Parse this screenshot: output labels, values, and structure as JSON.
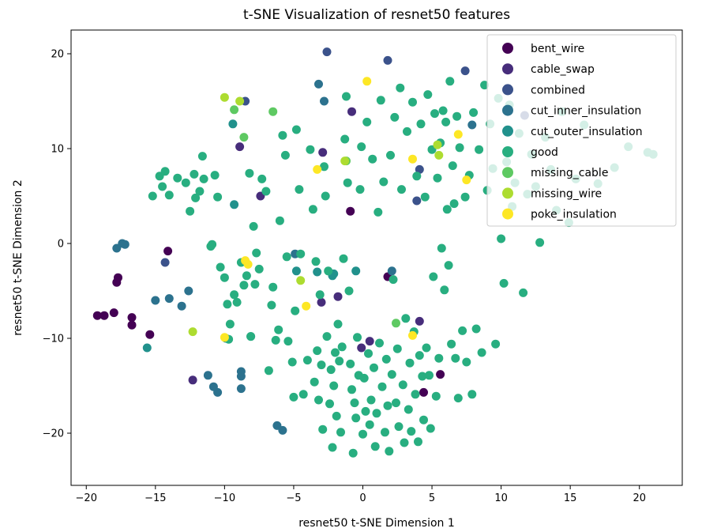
{
  "chart_data": {
    "type": "scatter",
    "title": "t-SNE Visualization of resnet50 features",
    "xlabel": "resnet50 t-SNE Dimension 1",
    "ylabel": "resnet50 t-SNE Dimension 2",
    "xlim": [
      -21.1,
      23.1
    ],
    "ylim": [
      -25.5,
      22.5
    ],
    "xticks": [
      -20,
      -15,
      -10,
      -5,
      0,
      5,
      10,
      15,
      20
    ],
    "yticks": [
      -20,
      -10,
      0,
      10,
      20
    ],
    "xtick_labels": [
      "−20",
      "−15",
      "−10",
      "−5",
      "0",
      "5",
      "10",
      "15",
      "20"
    ],
    "ytick_labels": [
      "−20",
      "−10",
      "0",
      "10",
      "20"
    ],
    "grid": false,
    "legend_position": "top-right",
    "series": [
      {
        "name": "bent_wire",
        "color": "#440154",
        "points": [
          [
            -19.2,
            -7.6
          ],
          [
            -18.7,
            -7.6
          ],
          [
            -18.0,
            -7.3
          ],
          [
            -17.8,
            -4.1
          ],
          [
            -17.7,
            -3.6
          ],
          [
            -16.7,
            -7.8
          ],
          [
            -16.7,
            -8.6
          ],
          [
            -15.4,
            -9.6
          ],
          [
            -14.1,
            -0.8
          ],
          [
            -0.9,
            3.4
          ],
          [
            1.8,
            -3.5
          ],
          [
            4.4,
            -15.7
          ],
          [
            5.6,
            -13.8
          ]
        ]
      },
      {
        "name": "cable_swap",
        "color": "#472d7b",
        "points": [
          [
            -12.3,
            -14.4
          ],
          [
            -8.9,
            10.2
          ],
          [
            -7.4,
            5.0
          ],
          [
            -3.0,
            -6.2
          ],
          [
            -2.9,
            9.6
          ],
          [
            -1.8,
            -5.6
          ],
          [
            -0.8,
            13.9
          ],
          [
            -0.1,
            -11.0
          ],
          [
            0.5,
            -10.3
          ],
          [
            4.1,
            -8.2
          ]
        ]
      },
      {
        "name": "combined",
        "color": "#3b528b",
        "points": [
          [
            -14.3,
            -2.0
          ],
          [
            -8.5,
            15.0
          ],
          [
            -2.6,
            20.2
          ],
          [
            1.8,
            19.3
          ],
          [
            3.9,
            4.5
          ],
          [
            4.1,
            7.8
          ],
          [
            7.4,
            18.2
          ],
          [
            11.7,
            13.5
          ]
        ]
      },
      {
        "name": "cut_inner_insulation",
        "color": "#2c728e",
        "points": [
          [
            -17.4,
            0.0
          ],
          [
            -17.2,
            -0.1
          ],
          [
            -17.8,
            -0.5
          ],
          [
            -15.0,
            -6.0
          ],
          [
            -14.0,
            -5.8
          ],
          [
            -13.1,
            -6.6
          ],
          [
            -12.6,
            -5.0
          ],
          [
            -11.2,
            -13.9
          ],
          [
            -10.8,
            -15.1
          ],
          [
            -10.5,
            -15.7
          ],
          [
            -8.8,
            -14.0
          ],
          [
            -8.8,
            -15.3
          ],
          [
            -8.8,
            -13.5
          ],
          [
            -6.2,
            -19.2
          ],
          [
            -5.8,
            -19.7
          ],
          [
            -4.9,
            -1.1
          ],
          [
            -3.2,
            16.8
          ],
          [
            -2.8,
            15.0
          ],
          [
            2.1,
            -2.9
          ],
          [
            7.9,
            12.5
          ]
        ]
      },
      {
        "name": "cut_outer_insulation",
        "color": "#21918c",
        "points": [
          [
            -15.6,
            -11.0
          ],
          [
            -9.9,
            -10.0
          ],
          [
            -9.3,
            4.1
          ],
          [
            -9.4,
            12.6
          ],
          [
            -8.1,
            -9.8
          ],
          [
            -4.8,
            -2.9
          ],
          [
            -3.3,
            -3.0
          ],
          [
            -2.2,
            -3.4
          ],
          [
            -2.1,
            -3.2
          ],
          [
            -0.5,
            -2.9
          ]
        ]
      },
      {
        "name": "good",
        "color": "#28ae80",
        "points": [
          [
            -15.2,
            5.0
          ],
          [
            -14.7,
            7.1
          ],
          [
            -14.5,
            6.0
          ],
          [
            -14.3,
            7.6
          ],
          [
            -14.0,
            5.1
          ],
          [
            -13.4,
            6.9
          ],
          [
            -12.8,
            6.4
          ],
          [
            -12.5,
            3.4
          ],
          [
            -12.2,
            7.3
          ],
          [
            -12.1,
            4.8
          ],
          [
            -11.8,
            5.5
          ],
          [
            -11.6,
            9.2
          ],
          [
            -11.5,
            6.8
          ],
          [
            -11.0,
            -0.3
          ],
          [
            -10.9,
            -0.1
          ],
          [
            -10.7,
            7.2
          ],
          [
            -10.5,
            4.9
          ],
          [
            -10.3,
            -2.5
          ],
          [
            -10.0,
            -3.6
          ],
          [
            -9.8,
            -6.4
          ],
          [
            -9.6,
            -8.5
          ],
          [
            -9.3,
            -5.4
          ],
          [
            -9.1,
            -6.2
          ],
          [
            -8.8,
            -2.0
          ],
          [
            -8.6,
            -4.4
          ],
          [
            -8.4,
            -3.4
          ],
          [
            -8.2,
            7.4
          ],
          [
            -8.1,
            -9.8
          ],
          [
            -7.9,
            1.8
          ],
          [
            -7.7,
            -1.0
          ],
          [
            -7.5,
            -2.7
          ],
          [
            -7.3,
            6.8
          ],
          [
            -7.0,
            5.5
          ],
          [
            -6.8,
            -13.4
          ],
          [
            -6.6,
            -6.5
          ],
          [
            -6.5,
            -4.6
          ],
          [
            -6.3,
            -10.2
          ],
          [
            -6.1,
            -9.1
          ],
          [
            -6.0,
            2.4
          ],
          [
            -5.8,
            11.4
          ],
          [
            -5.6,
            9.3
          ],
          [
            -5.5,
            -1.4
          ],
          [
            -5.4,
            -10.3
          ],
          [
            -5.1,
            -12.5
          ],
          [
            -5.0,
            -16.2
          ],
          [
            -4.9,
            -7.1
          ],
          [
            -4.8,
            12.0
          ],
          [
            -4.6,
            5.7
          ],
          [
            -4.5,
            -1.1
          ],
          [
            -4.3,
            -15.9
          ],
          [
            -4.0,
            -12.3
          ],
          [
            -3.8,
            9.9
          ],
          [
            -3.6,
            3.6
          ],
          [
            -3.5,
            -14.6
          ],
          [
            -3.4,
            -1.9
          ],
          [
            -3.3,
            -11.3
          ],
          [
            -3.2,
            -16.5
          ],
          [
            -3.0,
            -12.8
          ],
          [
            -2.9,
            -19.6
          ],
          [
            -2.8,
            8.1
          ],
          [
            -2.7,
            5.0
          ],
          [
            -2.6,
            -9.8
          ],
          [
            -2.5,
            -2.9
          ],
          [
            -2.4,
            -16.9
          ],
          [
            -2.3,
            -13.3
          ],
          [
            -2.2,
            -21.5
          ],
          [
            -2.1,
            -15.0
          ],
          [
            -2.0,
            -11.5
          ],
          [
            -1.9,
            -18.2
          ],
          [
            -1.8,
            -8.5
          ],
          [
            -1.7,
            -12.4
          ],
          [
            -1.6,
            -19.9
          ],
          [
            -1.5,
            -10.9
          ],
          [
            -1.4,
            -1.6
          ],
          [
            -1.3,
            11.0
          ],
          [
            -1.2,
            15.5
          ],
          [
            -1.1,
            6.4
          ],
          [
            -1.0,
            -5.0
          ],
          [
            -0.9,
            -12.7
          ],
          [
            -0.8,
            -15.4
          ],
          [
            -0.7,
            -22.1
          ],
          [
            -0.6,
            -16.8
          ],
          [
            -0.5,
            -18.4
          ],
          [
            -0.4,
            -9.9
          ],
          [
            -0.3,
            -13.9
          ],
          [
            -0.2,
            5.7
          ],
          [
            -0.1,
            10.2
          ],
          [
            0.0,
            -20.1
          ],
          [
            0.1,
            -14.2
          ],
          [
            0.2,
            -17.7
          ],
          [
            0.3,
            12.8
          ],
          [
            0.4,
            -11.6
          ],
          [
            0.5,
            -19.1
          ],
          [
            0.6,
            -16.5
          ],
          [
            0.7,
            8.9
          ],
          [
            0.8,
            -13.1
          ],
          [
            0.9,
            -21.4
          ],
          [
            1.0,
            -17.9
          ],
          [
            1.1,
            3.3
          ],
          [
            1.2,
            -10.5
          ],
          [
            1.3,
            15.1
          ],
          [
            1.4,
            -15.1
          ],
          [
            1.5,
            6.5
          ],
          [
            1.6,
            -19.9
          ],
          [
            1.7,
            -12.2
          ],
          [
            1.8,
            -17.1
          ],
          [
            1.9,
            -21.9
          ],
          [
            2.0,
            9.3
          ],
          [
            2.1,
            -13.8
          ],
          [
            2.2,
            -3.8
          ],
          [
            2.3,
            13.3
          ],
          [
            2.4,
            -16.8
          ],
          [
            2.5,
            -11.1
          ],
          [
            2.6,
            -19.3
          ],
          [
            2.7,
            16.4
          ],
          [
            2.8,
            5.7
          ],
          [
            2.9,
            -14.9
          ],
          [
            3.0,
            -21.0
          ],
          [
            3.1,
            -7.9
          ],
          [
            3.2,
            11.8
          ],
          [
            3.3,
            -17.5
          ],
          [
            3.4,
            -12.6
          ],
          [
            3.5,
            -19.8
          ],
          [
            3.6,
            14.9
          ],
          [
            3.7,
            -9.3
          ],
          [
            3.8,
            -15.9
          ],
          [
            3.9,
            7.1
          ],
          [
            4.0,
            -20.9
          ],
          [
            4.1,
            -11.8
          ],
          [
            4.2,
            12.6
          ],
          [
            4.3,
            -14.0
          ],
          [
            4.4,
            -18.6
          ],
          [
            4.5,
            4.9
          ],
          [
            4.6,
            -11.0
          ],
          [
            4.7,
            15.7
          ],
          [
            4.8,
            -13.9
          ],
          [
            4.9,
            -19.5
          ],
          [
            5.0,
            9.9
          ],
          [
            5.1,
            -3.5
          ],
          [
            5.2,
            13.7
          ],
          [
            5.3,
            -16.1
          ],
          [
            5.4,
            6.9
          ],
          [
            5.5,
            -12.1
          ],
          [
            5.6,
            10.6
          ],
          [
            5.7,
            -0.5
          ],
          [
            5.8,
            14.0
          ],
          [
            5.9,
            -4.9
          ],
          [
            6.0,
            12.8
          ],
          [
            6.1,
            3.6
          ],
          [
            6.2,
            -2.3
          ],
          [
            6.3,
            17.1
          ],
          [
            6.4,
            -10.6
          ],
          [
            6.5,
            8.2
          ],
          [
            6.6,
            4.2
          ],
          [
            6.7,
            -12.1
          ],
          [
            6.8,
            13.4
          ],
          [
            6.9,
            -16.3
          ],
          [
            7.0,
            10.1
          ],
          [
            7.2,
            -9.2
          ],
          [
            7.4,
            4.9
          ],
          [
            7.5,
            -12.5
          ],
          [
            7.7,
            7.2
          ],
          [
            7.9,
            -15.9
          ],
          [
            8.0,
            13.8
          ],
          [
            8.2,
            -9.0
          ],
          [
            8.4,
            9.9
          ],
          [
            8.6,
            -11.5
          ],
          [
            8.8,
            16.7
          ],
          [
            9.0,
            5.6
          ],
          [
            9.2,
            12.6
          ],
          [
            9.4,
            7.9
          ],
          [
            9.6,
            -10.6
          ],
          [
            9.8,
            15.3
          ],
          [
            10.0,
            0.5
          ],
          [
            10.2,
            -4.2
          ],
          [
            10.4,
            8.6
          ],
          [
            10.6,
            14.6
          ],
          [
            10.8,
            3.9
          ],
          [
            11.0,
            6.4
          ],
          [
            11.3,
            11.6
          ],
          [
            11.6,
            -5.2
          ],
          [
            11.9,
            5.2
          ],
          [
            12.2,
            9.4
          ],
          [
            12.5,
            6.0
          ],
          [
            12.8,
            0.1
          ],
          [
            13.2,
            11.2
          ],
          [
            13.6,
            7.8
          ],
          [
            14.0,
            3.5
          ],
          [
            14.4,
            13.9
          ],
          [
            14.9,
            2.2
          ],
          [
            15.4,
            6.8
          ],
          [
            16.0,
            12.5
          ],
          [
            17.0,
            6.3
          ],
          [
            18.2,
            8.0
          ],
          [
            19.2,
            10.2
          ],
          [
            20.6,
            9.6
          ],
          [
            21.0,
            9.4
          ],
          [
            -9.7,
            -10.1
          ],
          [
            -7.8,
            -4.3
          ],
          [
            -3.1,
            -5.4
          ]
        ]
      },
      {
        "name": "missing_cable",
        "color": "#5ec962",
        "points": [
          [
            -9.3,
            14.1
          ],
          [
            -8.6,
            11.2
          ],
          [
            -6.5,
            13.9
          ],
          [
            -1.2,
            8.7
          ],
          [
            2.4,
            -8.4
          ]
        ]
      },
      {
        "name": "missing_wire",
        "color": "#addc30",
        "points": [
          [
            -12.3,
            -9.3
          ],
          [
            -10.0,
            15.4
          ],
          [
            -8.9,
            15.0
          ],
          [
            -4.5,
            -3.9
          ],
          [
            -1.3,
            8.7
          ],
          [
            5.4,
            10.4
          ],
          [
            5.5,
            9.3
          ]
        ]
      },
      {
        "name": "poke_insulation",
        "color": "#fde725",
        "points": [
          [
            -10.0,
            -9.9
          ],
          [
            -8.5,
            -1.8
          ],
          [
            -8.3,
            -2.2
          ],
          [
            -4.1,
            -6.6
          ],
          [
            -3.3,
            7.8
          ],
          [
            0.3,
            17.1
          ],
          [
            3.6,
            -9.7
          ],
          [
            3.6,
            8.9
          ],
          [
            6.9,
            11.5
          ],
          [
            7.5,
            6.7
          ]
        ]
      }
    ]
  }
}
